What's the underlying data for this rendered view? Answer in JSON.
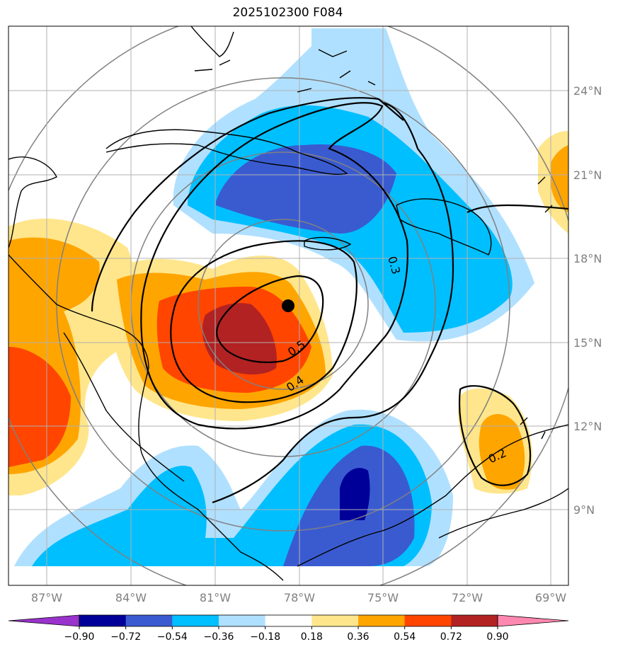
{
  "title": "2025102300 F084",
  "longitude_labels": [
    "87°W",
    "84°W",
    "81°W",
    "78°W",
    "75°W",
    "72°W",
    "69°W"
  ],
  "latitude_labels": [
    "24°N",
    "21°N",
    "18°N",
    "15°N",
    "12°N",
    "9°N"
  ],
  "contour_labels": [
    "0.5",
    "0.4",
    "0.3",
    "0.2"
  ],
  "colorbar": {
    "ticks": [
      "−0.90",
      "−0.72",
      "−0.54",
      "−0.36",
      "−0.18",
      "0.18",
      "0.36",
      "0.54",
      "0.72",
      "0.90"
    ],
    "colors": [
      "#9933cc",
      "#000099",
      "#3a5bd0",
      "#00bfff",
      "#b0e0ff",
      "#ffffff",
      "#ffe68c",
      "#ffa500",
      "#ff4500",
      "#b22222",
      "#ff88b0"
    ]
  },
  "storm_marker": {
    "lon": "78.2°W",
    "lat": "16.3°N"
  },
  "colors": {
    "grid": "#b0b0b0",
    "range_rings": "#808080",
    "coast": "#000000"
  }
}
